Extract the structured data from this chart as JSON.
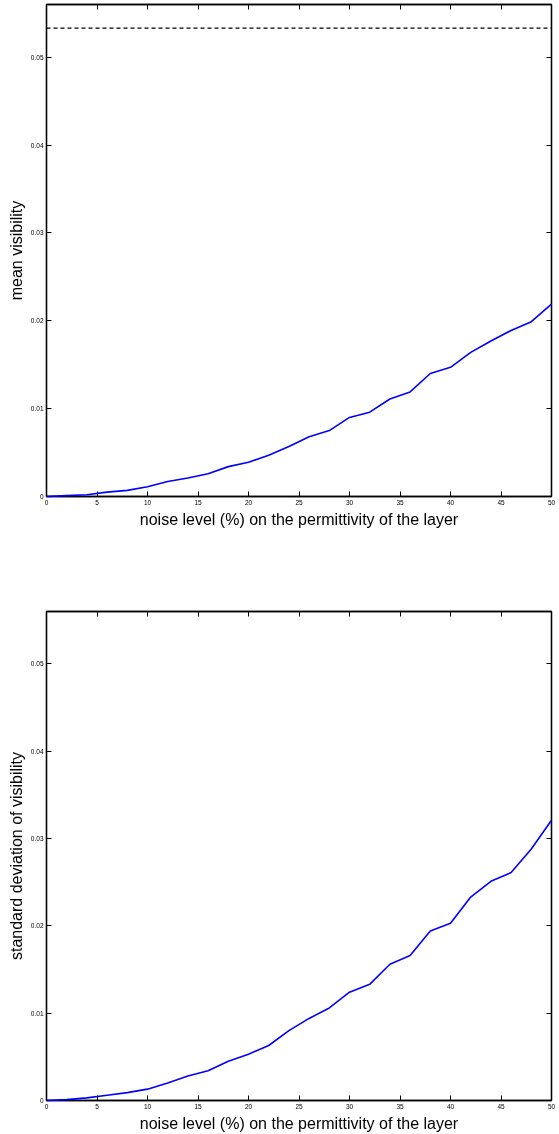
{
  "chart_data": [
    {
      "type": "line",
      "xlabel": "noise level (%) on the permittivity of the layer",
      "ylabel": "mean visibility",
      "x": [
        0,
        2,
        4,
        6,
        8,
        10,
        12,
        14,
        16,
        18,
        20,
        22,
        24,
        26,
        28,
        30,
        32,
        34,
        36,
        38,
        40,
        42,
        44,
        46,
        48,
        50
      ],
      "series": [
        {
          "color": "#0000ff",
          "values": [
            0,
            0.0001,
            0.0002,
            0.0005,
            0.0007,
            0.0011,
            0.0017,
            0.0021,
            0.0026,
            0.0034,
            0.0039,
            0.0047,
            0.0057,
            0.0068,
            0.0075,
            0.009,
            0.0096,
            0.0111,
            0.0119,
            0.014,
            0.0147,
            0.0164,
            0.0177,
            0.0189,
            0.0199,
            0.0219
          ]
        }
      ],
      "xlim": [
        0,
        50
      ],
      "ylim": [
        0,
        0.056
      ],
      "xticks": [
        0,
        5,
        10,
        15,
        20,
        25,
        30,
        35,
        40,
        45,
        50
      ],
      "yticks": [
        0,
        0.01,
        0.02,
        0.03,
        0.04,
        0.05
      ],
      "ref_lines": [
        {
          "axis": "y",
          "value": 0.0533,
          "color": "#000000",
          "line_style": "dashed"
        }
      ]
    },
    {
      "type": "line",
      "xlabel": "noise level (%) on the permittivity of the layer",
      "ylabel": "standard deviation of visibility",
      "x": [
        0,
        2,
        4,
        6,
        8,
        10,
        12,
        14,
        16,
        18,
        20,
        22,
        24,
        26,
        28,
        30,
        32,
        34,
        36,
        38,
        40,
        42,
        44,
        46,
        48,
        50
      ],
      "series": [
        {
          "color": "#0000ff",
          "values": [
            0,
            0.0001,
            0.0003,
            0.0006,
            0.0009,
            0.0013,
            0.002,
            0.0028,
            0.0034,
            0.0045,
            0.0053,
            0.0063,
            0.008,
            0.0094,
            0.0106,
            0.0124,
            0.0133,
            0.0156,
            0.0166,
            0.0194,
            0.0203,
            0.0233,
            0.0251,
            0.0261,
            0.0288,
            0.0321
          ]
        }
      ],
      "xlim": [
        0,
        50
      ],
      "ylim": [
        0,
        0.056
      ],
      "xticks": [
        0,
        5,
        10,
        15,
        20,
        25,
        30,
        35,
        40,
        45,
        50
      ],
      "yticks": [
        0,
        0.01,
        0.02,
        0.03,
        0.04,
        0.05
      ]
    }
  ]
}
